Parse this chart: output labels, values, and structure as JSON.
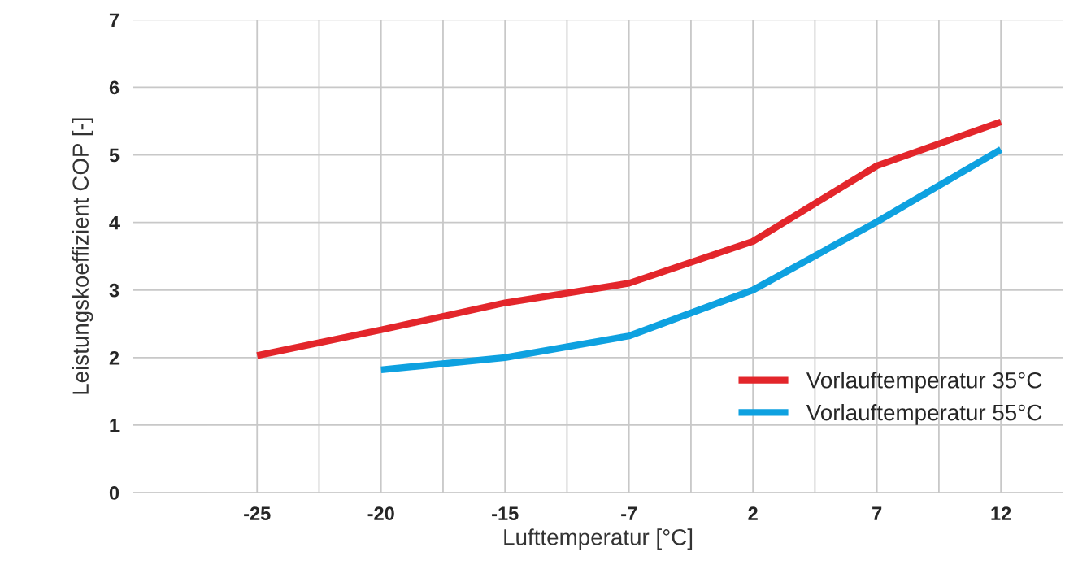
{
  "chart_data": {
    "type": "line",
    "xlabel": "Lufttemperatur [°C]",
    "ylabel": "Leistungskoeffizient COP [-]",
    "categories": [
      "-25",
      "-20",
      "-15",
      "-7",
      "2",
      "7",
      "12"
    ],
    "series": [
      {
        "name": "Vorlauftemperatur 35°C",
        "color": "#e3262b",
        "values": [
          2.03,
          2.41,
          2.81,
          3.1,
          3.72,
          4.84,
          5.49
        ]
      },
      {
        "name": "Vorlauftemperatur 55°C",
        "color": "#0ea1e0",
        "values": [
          null,
          1.82,
          2.0,
          2.32,
          3.0,
          4.01,
          5.08
        ]
      }
    ],
    "ylim": [
      0,
      7
    ],
    "yticks": [
      0,
      1,
      2,
      3,
      4,
      5,
      6,
      7
    ],
    "grid": true,
    "legend": "lower right",
    "marker": "none",
    "line_style": "solid"
  }
}
